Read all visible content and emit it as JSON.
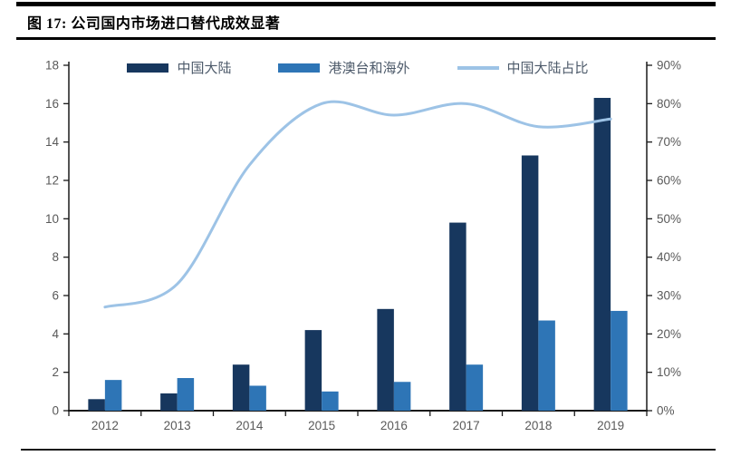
{
  "figure": {
    "title": "图 17: 公司国内市场进口替代成效显著"
  },
  "chart_data": {
    "type": "bar",
    "subtype": "grouped-bars-with-line-overlay",
    "categories": [
      "2012",
      "2013",
      "2014",
      "2015",
      "2016",
      "2017",
      "2018",
      "2019"
    ],
    "series": [
      {
        "name": "中国大陆",
        "type": "bar",
        "axis": "left",
        "color": "#17375E",
        "values": [
          0.6,
          0.9,
          2.4,
          4.2,
          5.3,
          9.8,
          13.3,
          16.3
        ]
      },
      {
        "name": "港澳台和海外",
        "type": "bar",
        "axis": "left",
        "color": "#2E75B6",
        "values": [
          1.6,
          1.7,
          1.3,
          1.0,
          1.5,
          2.4,
          4.7,
          5.2
        ]
      },
      {
        "name": "中国大陆占比",
        "type": "line",
        "axis": "right",
        "color": "#9DC3E6",
        "values": [
          27,
          33,
          64,
          80,
          77,
          80,
          74,
          76
        ]
      }
    ],
    "left_axis": {
      "min": 0,
      "max": 18,
      "step": 2,
      "ticks": [
        "0",
        "2",
        "4",
        "6",
        "8",
        "10",
        "12",
        "14",
        "16",
        "18"
      ]
    },
    "right_axis": {
      "min": 0,
      "max": 90,
      "step": 10,
      "suffix": "%",
      "ticks": [
        "0%",
        "10%",
        "20%",
        "30%",
        "40%",
        "50%",
        "60%",
        "70%",
        "80%",
        "90%"
      ]
    },
    "legend_position": "top",
    "grid": false,
    "styles": {
      "axis_line_color": "#1a1a1a",
      "tick_label_color": "#595959",
      "line_width": 3
    }
  }
}
